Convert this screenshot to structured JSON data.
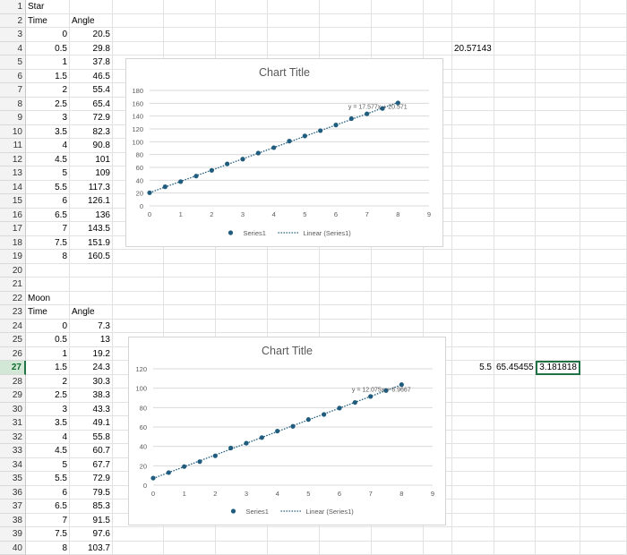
{
  "star": {
    "title": "Star",
    "headers": [
      "Time",
      "Angle"
    ],
    "rows": [
      [
        "0",
        "20.5"
      ],
      [
        "0.5",
        "29.8"
      ],
      [
        "1",
        "37.8"
      ],
      [
        "1.5",
        "46.5"
      ],
      [
        "2",
        "55.4"
      ],
      [
        "2.5",
        "65.4"
      ],
      [
        "3",
        "72.9"
      ],
      [
        "3.5",
        "82.3"
      ],
      [
        "4",
        "90.8"
      ],
      [
        "4.5",
        "101"
      ],
      [
        "5",
        "109"
      ],
      [
        "5.5",
        "117.3"
      ],
      [
        "6",
        "126.1"
      ],
      [
        "6.5",
        "136"
      ],
      [
        "7",
        "143.5"
      ],
      [
        "7.5",
        "151.9"
      ],
      [
        "8",
        "160.5"
      ]
    ],
    "side_value": "20.57143"
  },
  "moon": {
    "title": "Moon",
    "headers": [
      "Time",
      "Angle"
    ],
    "rows": [
      [
        "0",
        "7.3"
      ],
      [
        "0.5",
        "13"
      ],
      [
        "1",
        "19.2"
      ],
      [
        "1.5",
        "24.3"
      ],
      [
        "2",
        "30.3"
      ],
      [
        "2.5",
        "38.3"
      ],
      [
        "3",
        "43.3"
      ],
      [
        "3.5",
        "49.1"
      ],
      [
        "4",
        "55.8"
      ],
      [
        "4.5",
        "60.7"
      ],
      [
        "5",
        "67.7"
      ],
      [
        "5.5",
        "72.9"
      ],
      [
        "6",
        "79.5"
      ],
      [
        "6.5",
        "85.3"
      ],
      [
        "7",
        "91.5"
      ],
      [
        "7.5",
        "97.6"
      ],
      [
        "8",
        "103.7"
      ]
    ],
    "side_values": [
      "5.5",
      "65.45455",
      "3.181818"
    ]
  },
  "selected_row": 27,
  "colors": {
    "marker": "#1f5c7e",
    "grid": "#d9d9d9",
    "axis_text": "#595959",
    "selection": "#217346"
  },
  "chart_data": [
    {
      "type": "scatter",
      "title": "Chart Title",
      "series": [
        {
          "name": "Series1",
          "x": [
            0,
            0.5,
            1,
            1.5,
            2,
            2.5,
            3,
            3.5,
            4,
            4.5,
            5,
            5.5,
            6,
            6.5,
            7,
            7.5,
            8
          ],
          "y": [
            20.5,
            29.8,
            37.8,
            46.5,
            55.4,
            65.4,
            72.9,
            82.3,
            90.8,
            101,
            109,
            117.3,
            126.1,
            136,
            143.5,
            151.9,
            160.5
          ]
        }
      ],
      "trendline": {
        "name": "Linear (Series1)",
        "equation": "y = 17.577x + 20.571",
        "slope": 17.577,
        "intercept": 20.571
      },
      "xlim": [
        0,
        9
      ],
      "ylim": [
        0,
        180
      ],
      "xticks": [
        0,
        1,
        2,
        3,
        4,
        5,
        6,
        7,
        8,
        9
      ],
      "yticks": [
        0,
        20,
        40,
        60,
        80,
        100,
        120,
        140,
        160,
        180
      ],
      "grid": true,
      "legend": "bottom"
    },
    {
      "type": "scatter",
      "title": "Chart Title",
      "series": [
        {
          "name": "Series1",
          "x": [
            0,
            0.5,
            1,
            1.5,
            2,
            2.5,
            3,
            3.5,
            4,
            4.5,
            5,
            5.5,
            6,
            6.5,
            7,
            7.5,
            8
          ],
          "y": [
            7.3,
            13,
            19.2,
            24.3,
            30.3,
            38.3,
            43.3,
            49.1,
            55.8,
            60.7,
            67.7,
            72.9,
            79.5,
            85.3,
            91.5,
            97.6,
            103.7
          ]
        }
      ],
      "trendline": {
        "name": "Linear (Series1)",
        "equation": "y = 12.075x + 6.9667",
        "slope": 12.075,
        "intercept": 6.9667
      },
      "xlim": [
        0,
        9
      ],
      "ylim": [
        0,
        120
      ],
      "xticks": [
        0,
        1,
        2,
        3,
        4,
        5,
        6,
        7,
        8,
        9
      ],
      "yticks": [
        0,
        20,
        40,
        60,
        80,
        100,
        120
      ],
      "grid": true,
      "legend": "bottom"
    }
  ]
}
